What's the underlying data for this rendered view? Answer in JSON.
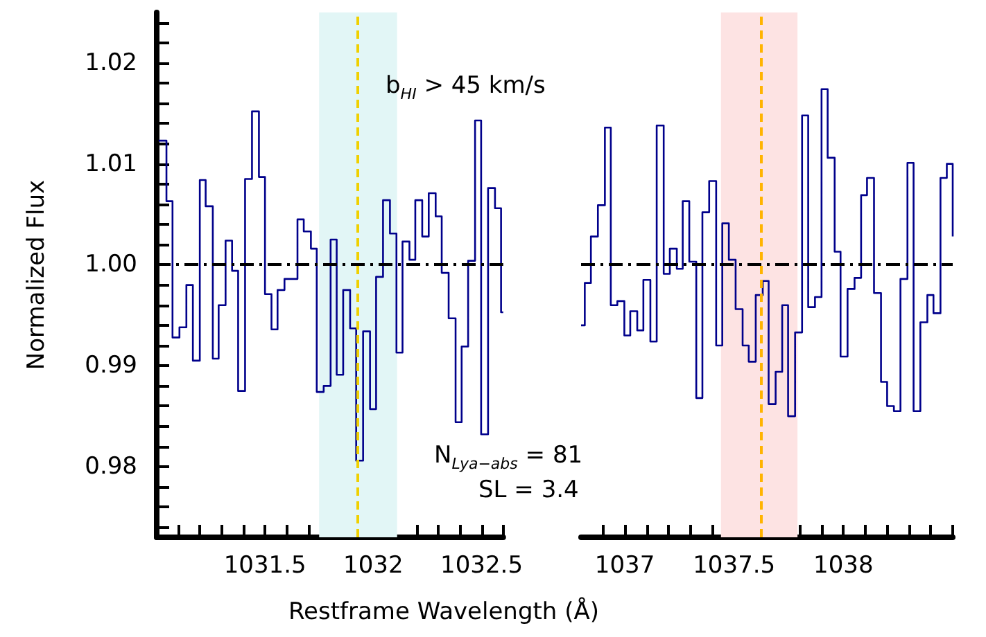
{
  "chart_data": [
    {
      "type": "step",
      "xlabel": "Restframe Wavelength (Å)",
      "ylabel": "Normalized Flux",
      "annotations": [
        "b$_{HI}$ > 45 km/s",
        "N$_{Lya−abs}$ = 81",
        "SL = 3.4"
      ],
      "xlim": [
        1031.0,
        1032.6
      ],
      "ylim": [
        0.973,
        1.025
      ],
      "xticks": [
        {
          "value": 1031.1,
          "label": null
        },
        {
          "value": 1031.2,
          "label": null
        },
        {
          "value": 1031.3,
          "label": null
        },
        {
          "value": 1031.4,
          "label": null
        },
        1031.5,
        {
          "value": 1031.6,
          "label": null
        },
        {
          "value": 1031.7,
          "label": null
        },
        {
          "value": 1031.8,
          "label": null
        },
        {
          "value": 1031.9,
          "label": null
        },
        1032,
        {
          "value": 1032.1,
          "label": null
        },
        {
          "value": 1032.2,
          "label": null
        },
        {
          "value": 1032.3,
          "label": null
        },
        {
          "value": 1032.4,
          "label": null
        },
        1032.5,
        {
          "value": 1032.6,
          "label": null
        }
      ],
      "yticks": [
        {
          "value": 0.974,
          "label": null
        },
        {
          "value": 0.976,
          "label": null
        },
        {
          "value": 0.978,
          "label": null
        },
        0.98,
        {
          "value": 0.982,
          "label": null
        },
        {
          "value": 0.984,
          "label": null
        },
        {
          "value": 0.986,
          "label": null
        },
        {
          "value": 0.988,
          "label": null
        },
        0.99,
        {
          "value": 0.992,
          "label": null
        },
        {
          "value": 0.994,
          "label": null
        },
        {
          "value": 0.996,
          "label": null
        },
        {
          "value": 0.998,
          "label": null
        },
        {
          "value": 1,
          "label": "1.00"
        },
        {
          "value": 1.002,
          "label": null
        },
        {
          "value": 1.004,
          "label": null
        },
        {
          "value": 1.006,
          "label": null
        },
        {
          "value": 1.008,
          "label": null
        },
        1.01,
        {
          "value": 1.012,
          "label": null
        },
        {
          "value": 1.014,
          "label": null
        },
        {
          "value": 1.016,
          "label": null
        },
        {
          "value": 1.018,
          "label": null
        },
        1.02,
        {
          "value": 1.022,
          "label": null
        },
        {
          "value": 1.024,
          "label": null
        }
      ],
      "color": "#00008b",
      "marker": "none",
      "line_style": "solid",
      "x": [
        1031.009,
        1031.045,
        1031.073,
        1031.105,
        1031.137,
        1031.167,
        1031.199,
        1031.226,
        1031.259,
        1031.286,
        1031.318,
        1031.348,
        1031.376,
        1031.408,
        1031.44,
        1031.472,
        1031.5,
        1031.53,
        1031.558,
        1031.59,
        1031.65,
        1031.679,
        1031.712,
        1031.739,
        1031.771,
        1031.803,
        1031.831,
        1031.861,
        1031.893,
        1031.921,
        1031.953,
        1031.985,
        1032.013,
        1032.045,
        1032.077,
        1032.107,
        1032.135,
        1032.167,
        1032.194,
        1032.226,
        1032.256,
        1032.288,
        1032.316,
        1032.348,
        1032.38,
        1032.408,
        1032.438,
        1032.47,
        1032.498,
        1032.53,
        1032.562,
        1032.59,
        1032.6
      ],
      "values": [
        1.0123,
        1.0063,
        0.9928,
        0.9938,
        0.998,
        0.9905,
        1.0084,
        1.0058,
        0.9907,
        0.996,
        1.0024,
        0.9994,
        0.9875,
        1.0085,
        1.0152,
        1.0087,
        0.9971,
        0.9936,
        0.9975,
        0.9986,
        1.0045,
        1.0033,
        1.0016,
        0.9874,
        0.988,
        1.0025,
        0.9891,
        0.9975,
        0.9937,
        0.9806,
        0.9934,
        0.9857,
        0.9988,
        1.0064,
        1.0031,
        0.9913,
        1.0023,
        1.0005,
        1.0064,
        1.0028,
        1.0071,
        1.0048,
        0.9992,
        0.9947,
        0.9844,
        0.9919,
        1.0004,
        1.0143,
        0.9832,
        1.0076,
        1.0056,
        0.9953,
        0.9953
      ],
      "bands": [
        {
          "axis": "x",
          "from": 1031.75,
          "to": 1032.11,
          "color": "#e2f6f6"
        }
      ],
      "ref_lines": [
        {
          "axis": "x",
          "value": 1031.93,
          "color": "#f0d000",
          "line_style": "dashed"
        },
        {
          "axis": "y",
          "value": 1,
          "color": "#000000",
          "line_style": "dashdot"
        }
      ]
    },
    {
      "type": "step",
      "tick_labels": "x",
      "xlim": [
        1036.8,
        1038.5
      ],
      "ylim": [
        0.973,
        1.025
      ],
      "xticks": [
        {
          "value": 1036.9,
          "label": null
        },
        1037,
        {
          "value": 1037.1,
          "label": null
        },
        {
          "value": 1037.2,
          "label": null
        },
        {
          "value": 1037.3,
          "label": null
        },
        {
          "value": 1037.4,
          "label": null
        },
        1037.5,
        {
          "value": 1037.6,
          "label": null
        },
        {
          "value": 1037.7,
          "label": null
        },
        {
          "value": 1037.8,
          "label": null
        },
        {
          "value": 1037.9,
          "label": null
        },
        1038,
        {
          "value": 1038.1,
          "label": null
        },
        {
          "value": 1038.2,
          "label": null
        },
        {
          "value": 1038.3,
          "label": null
        },
        {
          "value": 1038.4,
          "label": null
        },
        {
          "value": 1038.5,
          "label": null
        }
      ],
      "color": "#00008b",
      "marker": "none",
      "line_style": "solid",
      "x": [
        1036.8,
        1036.817,
        1036.845,
        1036.877,
        1036.909,
        1036.936,
        1036.966,
        1036.998,
        1037.025,
        1037.057,
        1037.085,
        1037.117,
        1037.146,
        1037.178,
        1037.206,
        1037.238,
        1037.265,
        1037.295,
        1037.327,
        1037.355,
        1037.386,
        1037.418,
        1037.446,
        1037.476,
        1037.507,
        1037.539,
        1037.567,
        1037.599,
        1037.631,
        1037.658,
        1037.69,
        1037.72,
        1037.747,
        1037.779,
        1037.811,
        1037.839,
        1037.87,
        1037.9,
        1037.928,
        1037.96,
        1037.987,
        1038.019,
        1038.051,
        1038.081,
        1038.108,
        1038.14,
        1038.172,
        1038.2,
        1038.231,
        1038.261,
        1038.293,
        1038.321,
        1038.352,
        1038.384,
        1038.412,
        1038.444,
        1038.473,
        1038.5
      ],
      "values": [
        0.994,
        0.9982,
        1.0028,
        1.0059,
        1.0136,
        0.996,
        0.9964,
        0.993,
        0.9954,
        0.9935,
        0.9985,
        0.9924,
        1.0138,
        0.9991,
        1.0016,
        0.9996,
        1.0063,
        1.0003,
        0.9868,
        1.0052,
        1.0083,
        0.992,
        1.0041,
        1.0005,
        0.9956,
        0.992,
        0.9904,
        0.997,
        0.9984,
        0.9862,
        0.9894,
        0.996,
        0.985,
        0.9933,
        1.0148,
        0.9958,
        0.9968,
        1.0174,
        1.0106,
        1.0013,
        0.9909,
        0.9976,
        0.9987,
        1.0069,
        1.0086,
        0.9972,
        0.9884,
        0.986,
        0.9855,
        0.9986,
        1.0101,
        0.9855,
        0.9943,
        0.997,
        0.9952,
        1.0086,
        1.01,
        1.0028
      ],
      "bands": [
        {
          "axis": "x",
          "from": 1037.44,
          "to": 1037.79,
          "color": "#fde3e3"
        }
      ],
      "ref_lines": [
        {
          "axis": "x",
          "value": 1037.62,
          "color": "#ffb400",
          "line_style": "dashed"
        },
        {
          "axis": "y",
          "value": 1,
          "color": "#000000",
          "line_style": "dashdot"
        }
      ]
    }
  ]
}
